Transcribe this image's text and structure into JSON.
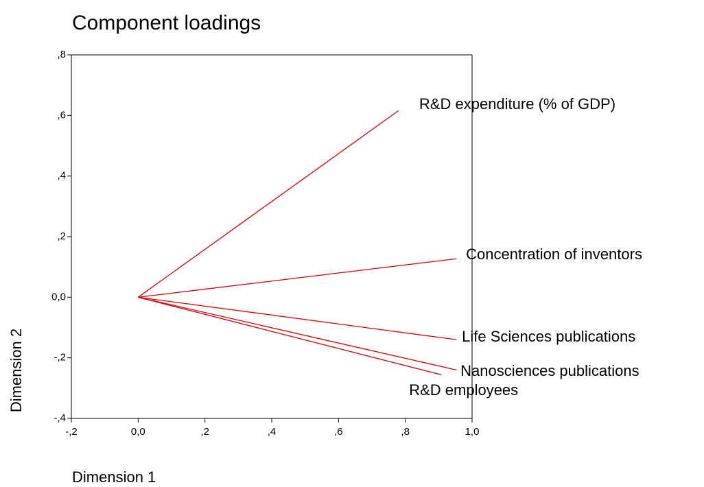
{
  "chart_data": {
    "type": "vector",
    "title": "Component loadings",
    "x_label": "Dimension 1",
    "y_label": "Dimension 2",
    "xlim": [
      -0.2,
      1.0
    ],
    "ylim": [
      -0.4,
      0.8
    ],
    "xticks": [
      {
        "value": -0.2,
        "label": "-,2"
      },
      {
        "value": 0,
        "label": "0,0"
      },
      {
        "value": 0.2,
        "label": ",2"
      },
      {
        "value": 0.4,
        "label": ",4"
      },
      {
        "value": 0.6,
        "label": ",6"
      },
      {
        "value": 0.8,
        "label": ",8"
      },
      {
        "value": 1.0,
        "label": "1,0"
      }
    ],
    "yticks": [
      {
        "value": -0.4,
        "label": "-,4"
      },
      {
        "value": -0.2,
        "label": "-,2"
      },
      {
        "value": 0,
        "label": "0,0"
      },
      {
        "value": 0.2,
        "label": ",2"
      },
      {
        "value": 0.4,
        "label": ",4"
      },
      {
        "value": 0.6,
        "label": ",6"
      },
      {
        "value": 0.8,
        "label": ",8"
      }
    ],
    "series": [
      {
        "name": "R&D expenditure (% of GDP)",
        "color": "#e00000",
        "x": 0.78,
        "value": 0.616
      },
      {
        "name": "Concentration of inventors",
        "color": "#e00000",
        "x": 0.953,
        "value": 0.127
      },
      {
        "name": "Life Sciences publications",
        "color": "#e00000",
        "x": 0.953,
        "value": -0.14
      },
      {
        "name": "Nanosciences publications",
        "color": "#e00000",
        "x": 0.953,
        "value": -0.24
      },
      {
        "name": "R&D employees",
        "color": "#e00000",
        "x": 0.908,
        "value": -0.256
      }
    ]
  }
}
